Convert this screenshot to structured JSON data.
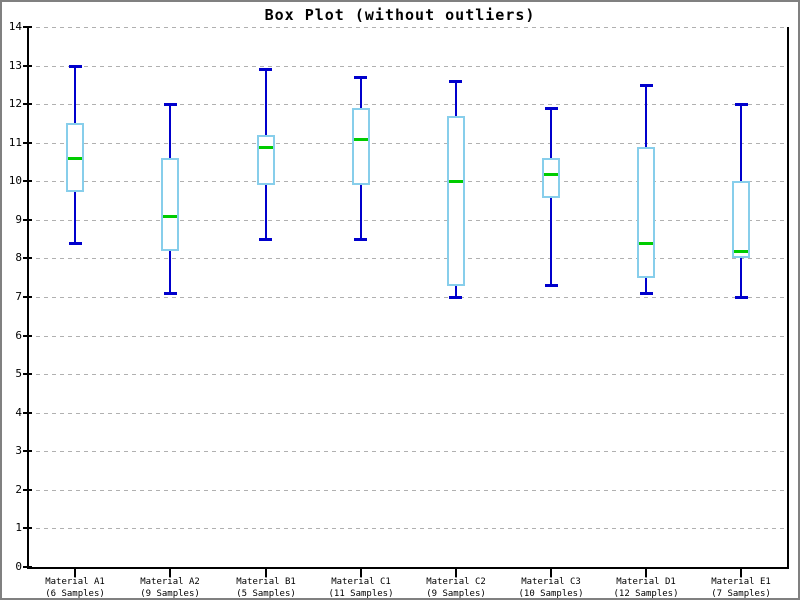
{
  "title": "Box Plot (without outliers)",
  "chart_data": {
    "type": "boxplot",
    "title": "Box Plot (without outliers)",
    "xlabel": "",
    "ylabel": "",
    "ylim": [
      0,
      14
    ],
    "yticks": [
      0,
      1,
      2,
      3,
      4,
      5,
      6,
      7,
      8,
      9,
      10,
      11,
      12,
      13,
      14
    ],
    "grid": "horizontal dashed gridlines at every integer",
    "legend": "none",
    "categories": [
      "Material A1",
      "Material A2",
      "Material B1",
      "Material C1",
      "Material C2",
      "Material C3",
      "Material D1",
      "Material E1"
    ],
    "sample_counts": [
      6,
      9,
      5,
      11,
      9,
      10,
      12,
      7
    ],
    "boxes": [
      {
        "label": "Material A1",
        "sublabel": "(6 Samples)",
        "samples": 6,
        "min": 8.4,
        "q1": 9.7,
        "median": 10.6,
        "q3": 11.5,
        "max": 13.0
      },
      {
        "label": "Material A2",
        "sublabel": "(9 Samples)",
        "samples": 9,
        "min": 7.1,
        "q1": 8.2,
        "median": 9.1,
        "q3": 10.6,
        "max": 12.0
      },
      {
        "label": "Material B1",
        "sublabel": "(5 Samples)",
        "samples": 5,
        "min": 8.5,
        "q1": 9.9,
        "median": 10.9,
        "q3": 11.2,
        "max": 12.9
      },
      {
        "label": "Material C1",
        "sublabel": "(11 Samples)",
        "samples": 11,
        "min": 8.5,
        "q1": 9.9,
        "median": 11.1,
        "q3": 11.9,
        "max": 12.7
      },
      {
        "label": "Material C2",
        "sublabel": "(9 Samples)",
        "samples": 9,
        "min": 7.0,
        "q1": 7.3,
        "median": 10.0,
        "q3": 11.7,
        "max": 12.6
      },
      {
        "label": "Material C3",
        "sublabel": "(10 Samples)",
        "samples": 10,
        "min": 7.3,
        "q1": 9.55,
        "median": 10.2,
        "q3": 10.6,
        "max": 11.9
      },
      {
        "label": "Material D1",
        "sublabel": "(12 Samples)",
        "samples": 12,
        "min": 7.1,
        "q1": 7.5,
        "median": 8.4,
        "q3": 10.9,
        "max": 12.5
      },
      {
        "label": "Material E1",
        "sublabel": "(7 Samples)",
        "samples": 7,
        "min": 7.0,
        "q1": 8.0,
        "median": 8.2,
        "q3": 10.0,
        "max": 12.0
      }
    ],
    "colors": {
      "whisker": "#0000cc",
      "box_border": "#87ceeb",
      "box_fill": "#ffffff",
      "median": "#00cc00",
      "grid": "#b0b0b0",
      "axis": "#000000",
      "frame_border": "#808080",
      "background": "#ffffff",
      "text": "#000000"
    }
  }
}
